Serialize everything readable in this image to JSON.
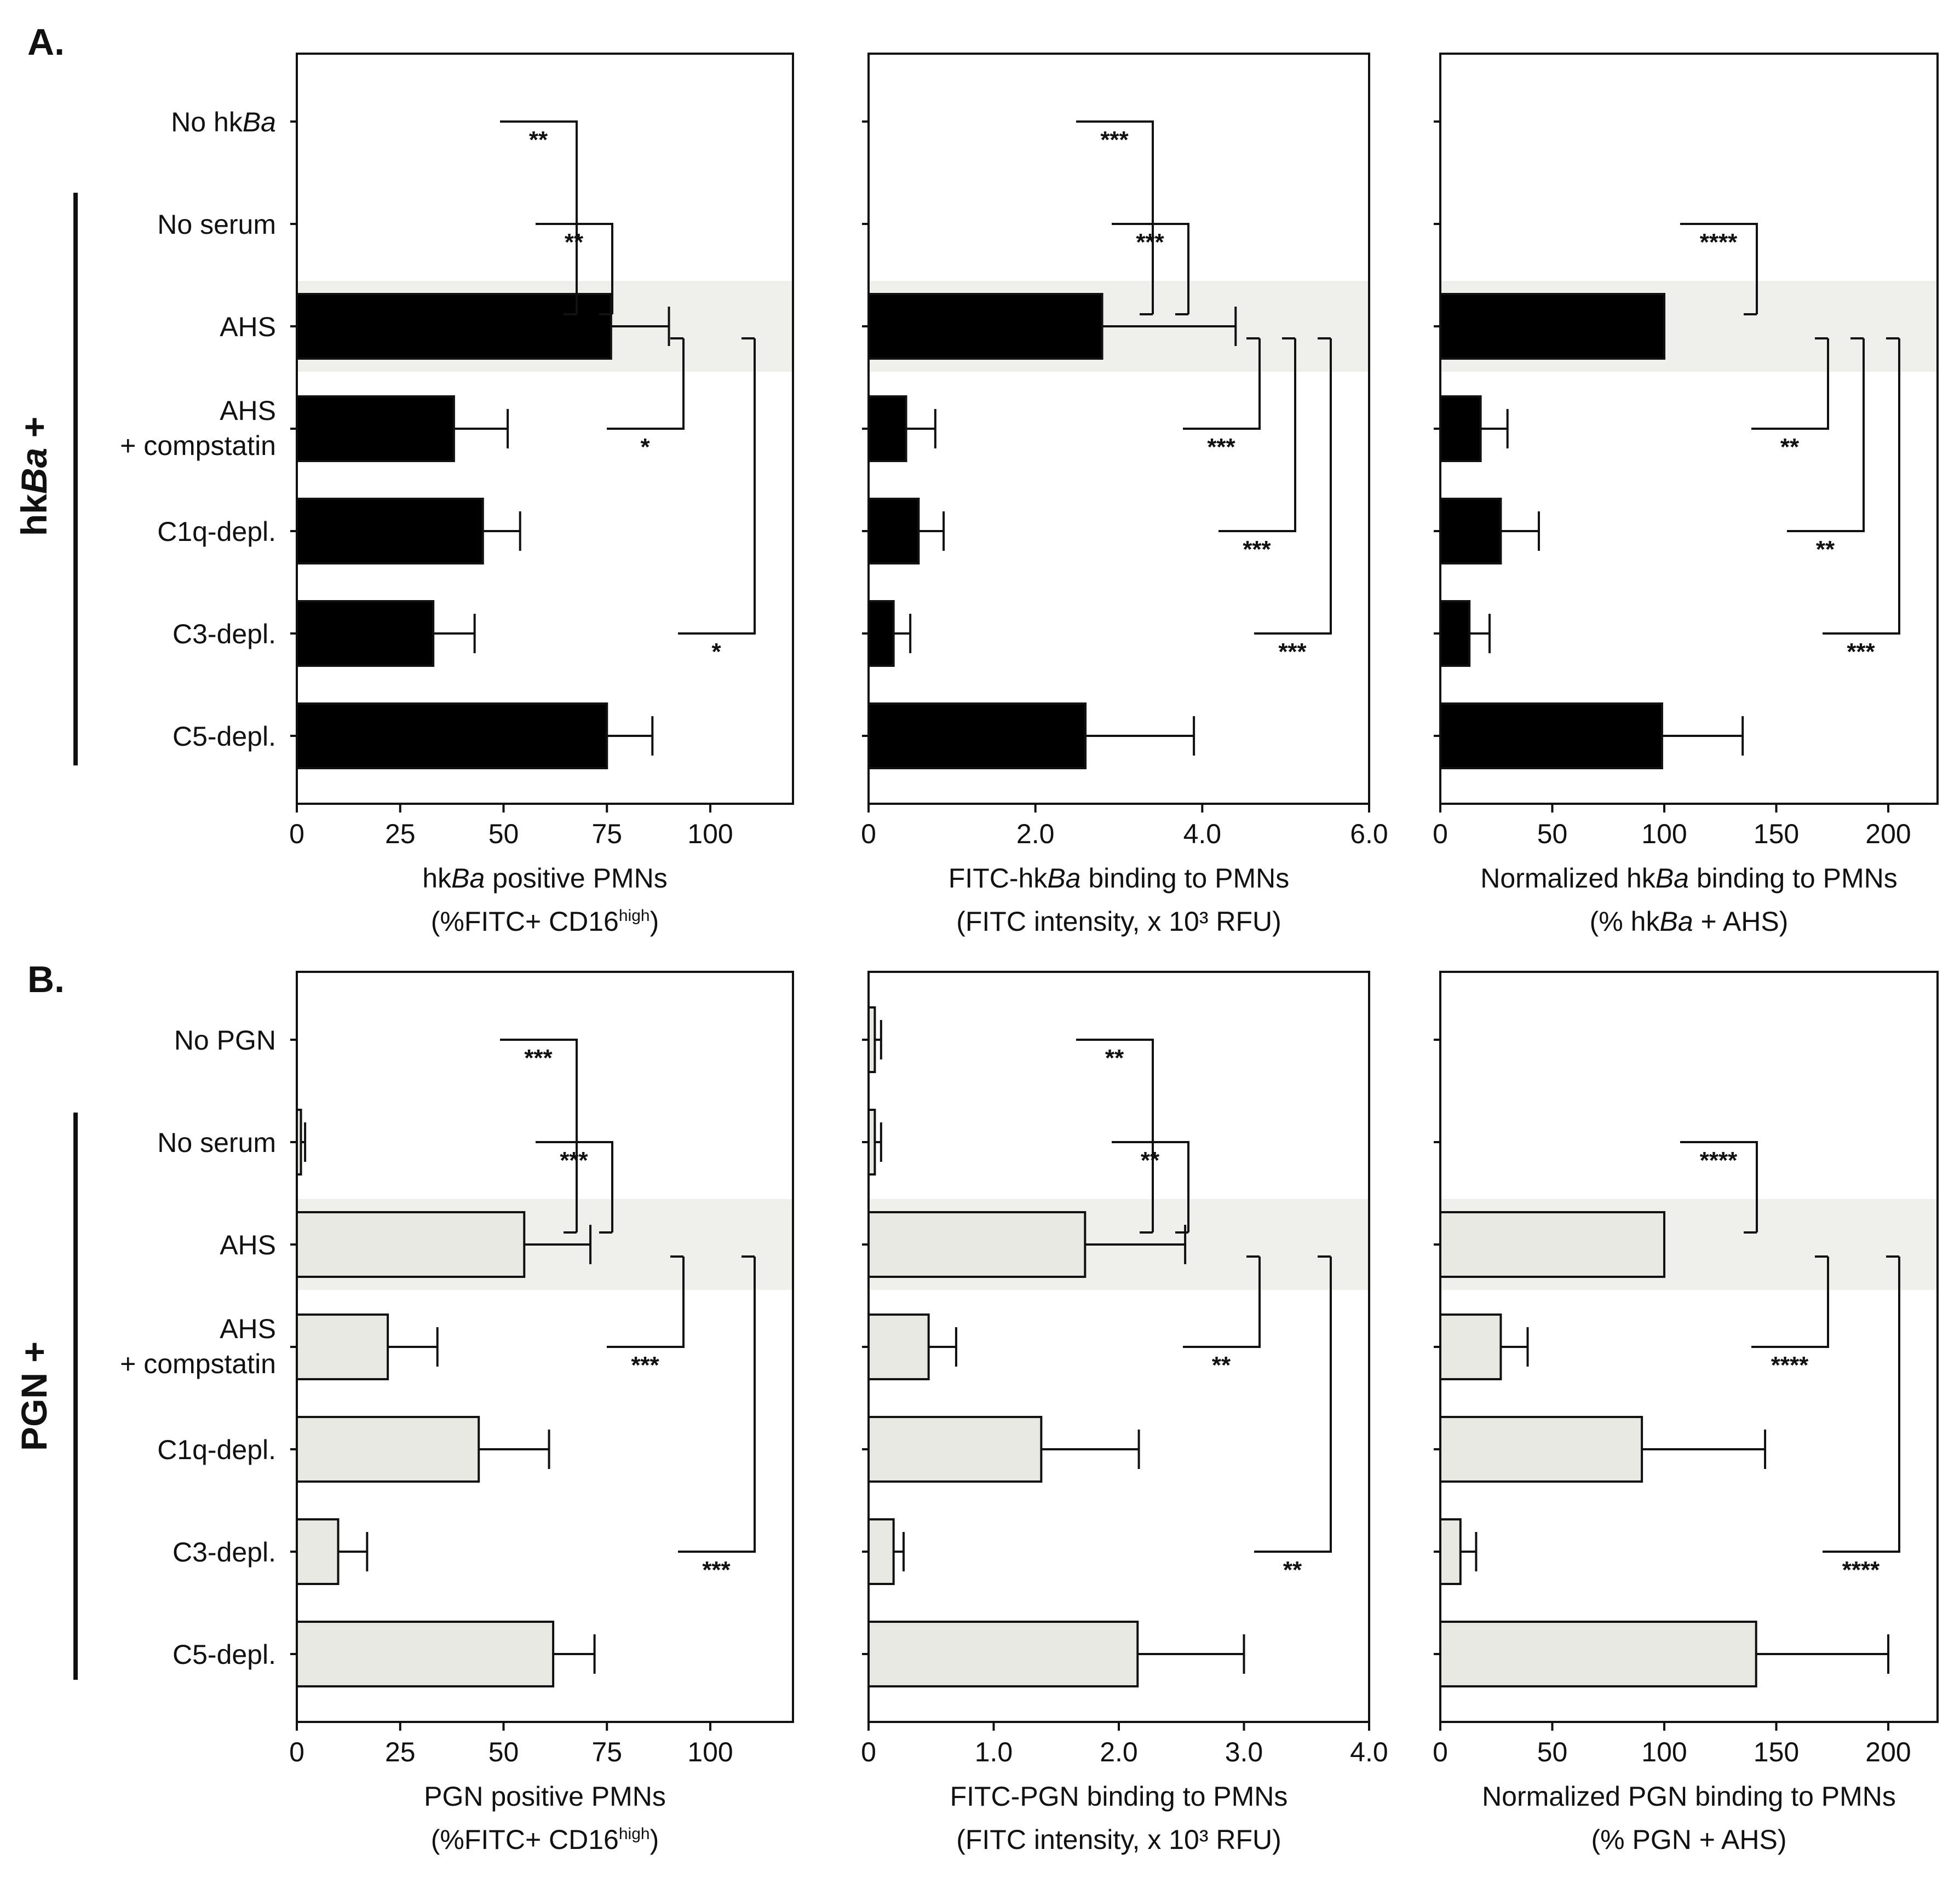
{
  "panels": [
    {
      "label": "A.",
      "group_label": "hkBa +",
      "group_label_parts": [
        "hk",
        "Ba",
        " +"
      ]
    },
    {
      "label": "B.",
      "group_label": "PGN +"
    }
  ],
  "chart_data": [
    {
      "type": "bar",
      "orientation": "horizontal",
      "panel": "A.",
      "categories": [
        "No hkBa",
        "No serum",
        "AHS",
        "AHS + compstatin",
        "C1q-depl.",
        "C3-depl.",
        "C5-depl."
      ],
      "category_label_lines": [
        [
          "No hkBa"
        ],
        [
          "No serum"
        ],
        [
          "AHS"
        ],
        [
          "AHS",
          "+ compstatin"
        ],
        [
          "C1q-depl."
        ],
        [
          "C3-depl."
        ],
        [
          "C5-depl."
        ]
      ],
      "values": [
        0,
        0,
        76,
        38,
        45,
        33,
        75
      ],
      "errors": [
        0,
        0,
        14,
        13,
        9,
        10,
        11
      ],
      "xlim": [
        0,
        120
      ],
      "xticks": [
        0,
        25,
        50,
        75,
        100
      ],
      "xtick_labels": [
        "0",
        "25",
        "50",
        "75",
        "100"
      ],
      "xlabel": "hkBa positive PMNs",
      "xlabel_line2": "(%FITC+ CD16high)",
      "bar_color": "#000000",
      "highlight_category": "AHS",
      "significance": [
        {
          "from": 2,
          "to": 0,
          "label": "**"
        },
        {
          "from": 2,
          "to": 1,
          "label": "**"
        },
        {
          "from": 2,
          "to": 3,
          "label": "*"
        },
        {
          "from": 2,
          "to": 5,
          "label": "*"
        }
      ]
    },
    {
      "type": "bar",
      "orientation": "horizontal",
      "panel": "A.",
      "categories": [
        "No hkBa",
        "No serum",
        "AHS",
        "AHS + compstatin",
        "C1q-depl.",
        "C3-depl.",
        "C5-depl."
      ],
      "values": [
        0,
        0,
        2.8,
        0.45,
        0.6,
        0.3,
        2.6
      ],
      "errors": [
        0,
        0,
        1.6,
        0.35,
        0.3,
        0.2,
        1.3
      ],
      "xlim": [
        0,
        6.0
      ],
      "xticks": [
        0,
        2.0,
        4.0,
        6.0
      ],
      "xtick_labels": [
        "0",
        "2.0",
        "4.0",
        "6.0"
      ],
      "xlabel": "FITC-hkBa binding to PMNs",
      "xlabel_line2": "(FITC intensity, x 10³ RFU)",
      "bar_color": "#000000",
      "highlight_category": "AHS",
      "significance": [
        {
          "from": 2,
          "to": 0,
          "label": "***"
        },
        {
          "from": 2,
          "to": 1,
          "label": "***"
        },
        {
          "from": 2,
          "to": 3,
          "label": "***"
        },
        {
          "from": 2,
          "to": 4,
          "label": "***"
        },
        {
          "from": 2,
          "to": 5,
          "label": "***"
        }
      ]
    },
    {
      "type": "bar",
      "orientation": "horizontal",
      "panel": "A.",
      "categories": [
        "No hkBa",
        "No serum",
        "AHS",
        "AHS + compstatin",
        "C1q-depl.",
        "C3-depl.",
        "C5-depl."
      ],
      "values": [
        0,
        0,
        100,
        18,
        27,
        13,
        99
      ],
      "errors": [
        0,
        0,
        0,
        12,
        17,
        9,
        36
      ],
      "xlim": [
        0,
        222
      ],
      "xticks": [
        0,
        50,
        100,
        150,
        200
      ],
      "xtick_labels": [
        "0",
        "50",
        "100",
        "150",
        "200"
      ],
      "xlabel": "Normalized hkBa binding to PMNs",
      "xlabel_line2": "(% hkBa + AHS)",
      "bar_color": "#000000",
      "highlight_category": "AHS",
      "significance": [
        {
          "from": 2,
          "to": 1,
          "label": "****"
        },
        {
          "from": 2,
          "to": 3,
          "label": "**"
        },
        {
          "from": 2,
          "to": 4,
          "label": "**"
        },
        {
          "from": 2,
          "to": 5,
          "label": "***"
        }
      ]
    },
    {
      "type": "bar",
      "orientation": "horizontal",
      "panel": "B.",
      "categories": [
        "No PGN",
        "No serum",
        "AHS",
        "AHS + compstatin",
        "C1q-depl.",
        "C3-depl.",
        "C5-depl."
      ],
      "category_label_lines": [
        [
          "No PGN"
        ],
        [
          "No serum"
        ],
        [
          "AHS"
        ],
        [
          "AHS",
          "+ compstatin"
        ],
        [
          "C1q-depl."
        ],
        [
          "C3-depl."
        ],
        [
          "C5-depl."
        ]
      ],
      "values": [
        0,
        1,
        55,
        22,
        44,
        10,
        62
      ],
      "errors": [
        0,
        1,
        16,
        12,
        17,
        7,
        10
      ],
      "xlim": [
        0,
        120
      ],
      "xticks": [
        0,
        25,
        50,
        75,
        100
      ],
      "xtick_labels": [
        "0",
        "25",
        "50",
        "75",
        "100"
      ],
      "xlabel": "PGN positive PMNs",
      "xlabel_line2": "(%FITC+ CD16high)",
      "bar_color": "#e8e8e2",
      "highlight_category": "AHS",
      "significance": [
        {
          "from": 2,
          "to": 0,
          "label": "***"
        },
        {
          "from": 2,
          "to": 1,
          "label": "***"
        },
        {
          "from": 2,
          "to": 3,
          "label": "***"
        },
        {
          "from": 2,
          "to": 5,
          "label": "***"
        }
      ]
    },
    {
      "type": "bar",
      "orientation": "horizontal",
      "panel": "B.",
      "categories": [
        "No PGN",
        "No serum",
        "AHS",
        "AHS + compstatin",
        "C1q-depl.",
        "C3-depl.",
        "C5-depl."
      ],
      "values": [
        0.05,
        0.05,
        1.73,
        0.48,
        1.38,
        0.2,
        2.15
      ],
      "errors": [
        0.05,
        0.05,
        0.8,
        0.22,
        0.78,
        0.08,
        0.85
      ],
      "xlim": [
        0,
        4.0
      ],
      "xticks": [
        0,
        1.0,
        2.0,
        3.0,
        4.0
      ],
      "xtick_labels": [
        "0",
        "1.0",
        "2.0",
        "3.0",
        "4.0"
      ],
      "xlabel": "FITC-PGN binding to PMNs",
      "xlabel_line2": "(FITC intensity, x 10³ RFU)",
      "bar_color": "#e8e8e2",
      "highlight_category": "AHS",
      "significance": [
        {
          "from": 2,
          "to": 0,
          "label": "**"
        },
        {
          "from": 2,
          "to": 1,
          "label": "**"
        },
        {
          "from": 2,
          "to": 3,
          "label": "**"
        },
        {
          "from": 2,
          "to": 5,
          "label": "**"
        }
      ]
    },
    {
      "type": "bar",
      "orientation": "horizontal",
      "panel": "B.",
      "categories": [
        "No PGN",
        "No serum",
        "AHS",
        "AHS + compstatin",
        "C1q-depl.",
        "C3-depl.",
        "C5-depl."
      ],
      "values": [
        0,
        0,
        100,
        27,
        90,
        9,
        141
      ],
      "errors": [
        0,
        0,
        0,
        12,
        55,
        7,
        59
      ],
      "xlim": [
        0,
        222
      ],
      "xticks": [
        0,
        50,
        100,
        150,
        200
      ],
      "xtick_labels": [
        "0",
        "50",
        "100",
        "150",
        "200"
      ],
      "xlabel": "Normalized PGN binding to PMNs",
      "xlabel_line2": "(% PGN + AHS)",
      "bar_color": "#e8e8e2",
      "highlight_category": "AHS",
      "significance": [
        {
          "from": 2,
          "to": 1,
          "label": "****"
        },
        {
          "from": 2,
          "to": 3,
          "label": "****"
        },
        {
          "from": 2,
          "to": 5,
          "label": "****"
        }
      ]
    }
  ]
}
